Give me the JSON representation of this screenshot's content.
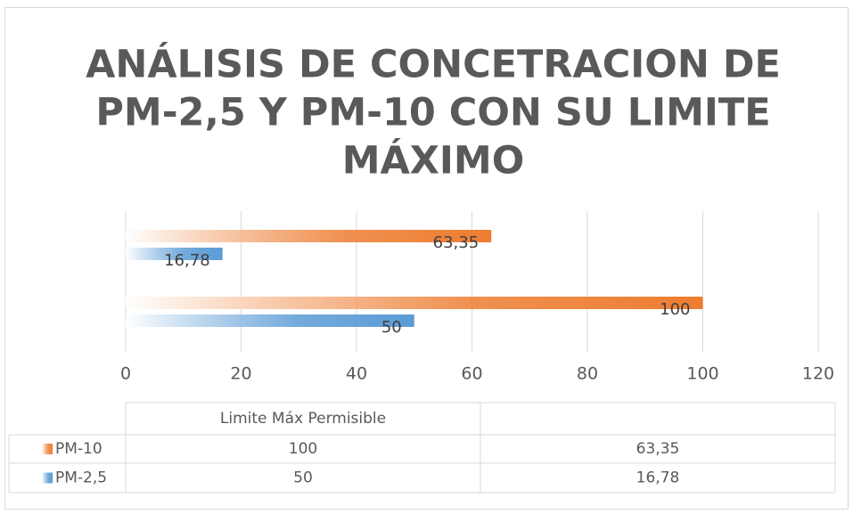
{
  "chart_data": {
    "type": "bar",
    "orientation": "horizontal",
    "title": [
      "ANÁLISIS DE CONCETRACION DE",
      "PM-2,5 Y PM-10 CON SU LIMITE",
      "MÁXIMO"
    ],
    "categories": [
      "Limite Máx Permisible",
      null
    ],
    "series": [
      {
        "name": "PM-10",
        "color": "#ed7d31",
        "values": [
          100,
          63.35
        ],
        "value_labels": [
          "100",
          "63,35"
        ]
      },
      {
        "name": "PM-2,5",
        "color": "#5b9bd5",
        "values": [
          50,
          16.78
        ],
        "value_labels": [
          "50",
          "16,78"
        ]
      }
    ],
    "xlim": [
      0,
      120
    ],
    "xticks": [
      0,
      20,
      40,
      60,
      80,
      100,
      120
    ],
    "grid": true,
    "data_table": true
  }
}
